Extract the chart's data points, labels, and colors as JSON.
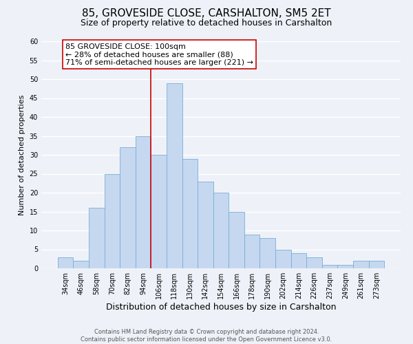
{
  "title": "85, GROVESIDE CLOSE, CARSHALTON, SM5 2ET",
  "subtitle": "Size of property relative to detached houses in Carshalton",
  "xlabel": "Distribution of detached houses by size in Carshalton",
  "ylabel": "Number of detached properties",
  "bar_color": "#c5d8f0",
  "bar_edge_color": "#7aadd4",
  "categories": [
    "34sqm",
    "46sqm",
    "58sqm",
    "70sqm",
    "82sqm",
    "94sqm",
    "106sqm",
    "118sqm",
    "130sqm",
    "142sqm",
    "154sqm",
    "166sqm",
    "178sqm",
    "190sqm",
    "202sqm",
    "214sqm",
    "226sqm",
    "237sqm",
    "249sqm",
    "261sqm",
    "273sqm"
  ],
  "values": [
    3,
    2,
    16,
    25,
    32,
    35,
    30,
    49,
    29,
    23,
    20,
    15,
    9,
    8,
    5,
    4,
    3,
    1,
    1,
    2,
    2
  ],
  "ylim": [
    0,
    60
  ],
  "yticks": [
    0,
    5,
    10,
    15,
    20,
    25,
    30,
    35,
    40,
    45,
    50,
    55,
    60
  ],
  "vline_color": "#cc0000",
  "annotation_text": "85 GROVESIDE CLOSE: 100sqm\n← 28% of detached houses are smaller (88)\n71% of semi-detached houses are larger (221) →",
  "annotation_box_color": "#ffffff",
  "annotation_box_edge": "#cc0000",
  "footer_line1": "Contains HM Land Registry data © Crown copyright and database right 2024.",
  "footer_line2": "Contains public sector information licensed under the Open Government Licence v3.0.",
  "background_color": "#eef2f8",
  "grid_color": "#ffffff",
  "title_fontsize": 11,
  "subtitle_fontsize": 9,
  "xlabel_fontsize": 9,
  "ylabel_fontsize": 8,
  "tick_fontsize": 7,
  "annotation_fontsize": 8,
  "footer_fontsize": 6
}
